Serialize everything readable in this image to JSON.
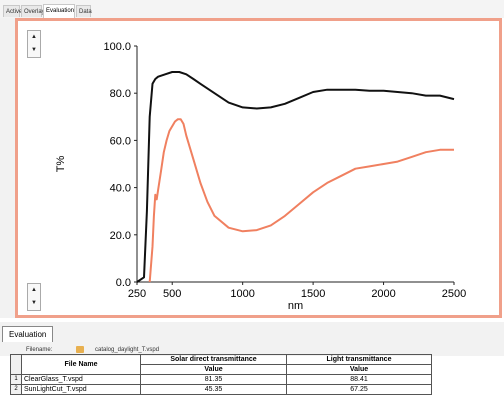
{
  "tabs": [
    "Active",
    "Overlay",
    "Evaluation",
    "Data"
  ],
  "active_tab": 2,
  "spin_up": "▲",
  "spin_down": "▼",
  "chart_data": {
    "type": "line",
    "xlabel": "nm",
    "ylabel": "T%",
    "xlim": [
      250,
      2500
    ],
    "ylim": [
      0,
      100
    ],
    "xticks": [
      250,
      500,
      1000,
      1500,
      2000,
      2500
    ],
    "yticks": [
      "0.0",
      "20.0",
      "40.0",
      "60.0",
      "80.0",
      "100.0"
    ],
    "grid": false,
    "series": [
      {
        "color": "#111111",
        "x": [
          250,
          300,
          320,
          340,
          360,
          380,
          400,
          450,
          500,
          550,
          600,
          650,
          700,
          800,
          900,
          1000,
          1100,
          1200,
          1300,
          1400,
          1500,
          1600,
          1700,
          1800,
          1900,
          2000,
          2100,
          2200,
          2300,
          2400,
          2500
        ],
        "y": [
          0,
          2,
          30,
          70,
          84,
          86,
          87,
          88,
          89,
          89,
          88,
          86,
          84,
          80,
          76,
          74,
          73.5,
          74,
          75.5,
          78,
          80.5,
          81.5,
          81.5,
          81.5,
          81,
          81,
          80.5,
          80,
          79,
          79,
          77.5
        ]
      },
      {
        "color": "#f08060",
        "x": [
          340,
          360,
          370,
          380,
          390,
          400,
          420,
          440,
          460,
          480,
          500,
          520,
          540,
          560,
          580,
          600,
          650,
          700,
          750,
          800,
          900,
          1000,
          1100,
          1200,
          1300,
          1400,
          1500,
          1600,
          1700,
          1800,
          1900,
          2000,
          2100,
          2200,
          2300,
          2400,
          2500
        ],
        "y": [
          0,
          15,
          28,
          37,
          35,
          39,
          47,
          55,
          60,
          64,
          66,
          68,
          69,
          69,
          67,
          62,
          52,
          42,
          34,
          28,
          23,
          21.5,
          22,
          24,
          28,
          33,
          38,
          42,
          45,
          48,
          49,
          50,
          51,
          53,
          55,
          56,
          56
        ]
      }
    ]
  },
  "evaluation": {
    "tab_label": "Evaluation",
    "filename_label": "Filename:",
    "filename": "catalog_daylight_T.vspd",
    "columns": [
      "File Name",
      "Solar direct transmittance",
      "Light transmittance"
    ],
    "value_label": "Value",
    "rows": [
      {
        "index": "1",
        "file": "ClearGlass_T.vspd",
        "solar": "81.35",
        "light": "88.41"
      },
      {
        "index": "2",
        "file": "SunLightCut_T.vspd",
        "solar": "45.35",
        "light": "67.25"
      }
    ]
  }
}
